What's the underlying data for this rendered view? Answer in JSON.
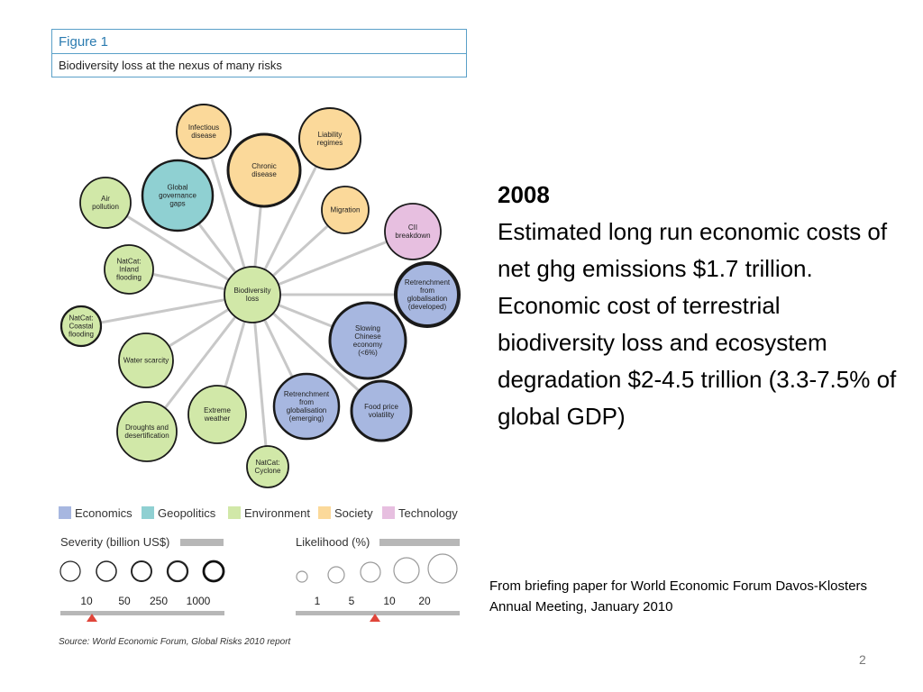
{
  "figure": {
    "title": "Figure 1",
    "caption": "Biodiversity loss at the nexus of many risks"
  },
  "colors": {
    "economics": "#a7b7e0",
    "geopolitics": "#8fd0d2",
    "environment": "#d1e8a8",
    "society": "#fbd99a",
    "technology": "#e7bfe0",
    "line": "#c8c8c8",
    "marker": "#e0453a"
  },
  "network": {
    "center": {
      "label": "Biodiversity\nloss",
      "category": "environment"
    },
    "nodes": [
      {
        "id": "infectious-disease",
        "label": "Infectious\ndisease",
        "category": "society"
      },
      {
        "id": "liability-regimes",
        "label": "Liability\nregimes",
        "category": "society"
      },
      {
        "id": "chronic-disease",
        "label": "Chronic\ndisease",
        "category": "society"
      },
      {
        "id": "global-governance-gaps",
        "label": "Global\ngovernance\ngaps",
        "category": "geopolitics"
      },
      {
        "id": "air-pollution",
        "label": "Air\npollution",
        "category": "environment"
      },
      {
        "id": "migration",
        "label": "Migration",
        "category": "society"
      },
      {
        "id": "cii-breakdown",
        "label": "CII\nbreakdown",
        "category": "technology"
      },
      {
        "id": "natcat-inland-flooding",
        "label": "NatCat:\nInland\nflooding",
        "category": "environment"
      },
      {
        "id": "retrenchment-developed",
        "label": "Retrenchment\nfrom\nglobalisation\n(developed)",
        "category": "economics"
      },
      {
        "id": "natcat-coastal-flooding",
        "label": "NatCat:\nCoastal\nflooding",
        "category": "environment"
      },
      {
        "id": "slowing-chinese-economy",
        "label": "Slowing\nChinese\neconomy\n(<6%)",
        "category": "economics"
      },
      {
        "id": "water-scarcity",
        "label": "Water scarcity",
        "category": "environment"
      },
      {
        "id": "retrenchment-emerging",
        "label": "Retrenchment\nfrom\nglobalisation\n(emerging)",
        "category": "economics"
      },
      {
        "id": "food-price-volatility",
        "label": "Food price\nvolatility",
        "category": "economics"
      },
      {
        "id": "extreme-weather",
        "label": "Extreme\nweather",
        "category": "environment"
      },
      {
        "id": "droughts-desertification",
        "label": "Droughts and\ndesertification",
        "category": "environment"
      },
      {
        "id": "natcat-cyclone",
        "label": "NatCat:\nCyclone",
        "category": "environment"
      }
    ]
  },
  "legend": [
    {
      "label": "Economics",
      "category": "economics"
    },
    {
      "label": "Geopolitics",
      "category": "geopolitics"
    },
    {
      "label": "Environment",
      "category": "environment"
    },
    {
      "label": "Society",
      "category": "society"
    },
    {
      "label": "Technology",
      "category": "technology"
    }
  ],
  "severity": {
    "title": "Severity (billion US$)",
    "ticks": [
      "10",
      "50",
      "250",
      "1000"
    ]
  },
  "likelihood": {
    "title": "Likelihood (%)",
    "ticks": [
      "1",
      "5",
      "10",
      "20"
    ]
  },
  "source": "Source: World Economic Forum, Global Risks 2010 report",
  "text": {
    "year": "2008",
    "para1": "Estimated long run economic costs of net ghg emissions $1.7 trillion.",
    "para2": "Economic cost of terrestrial biodiversity loss and ecosystem degradation $2-4.5 trillion (3.3-7.5% of global GDP)"
  },
  "briefing": "From briefing paper for World Economic Forum Davos-Klosters Annual Meeting, January 2010",
  "page_number": "2"
}
